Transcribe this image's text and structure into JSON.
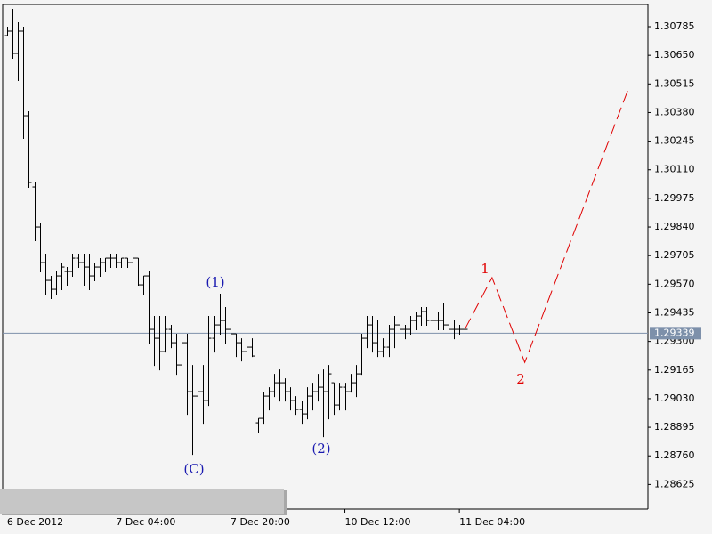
{
  "chart_data": {
    "type": "ohlc",
    "categories": [
      "6 Dec 2012",
      null,
      null,
      null,
      null,
      null,
      null,
      null,
      null,
      null,
      null,
      null,
      null,
      null,
      null,
      null,
      null,
      null,
      null,
      null,
      "7 Dec 04:00",
      null,
      null,
      null,
      null,
      null,
      null,
      null,
      null,
      null,
      null,
      null,
      null,
      null,
      null,
      null,
      null,
      null,
      null,
      null,
      null,
      "7 Dec 20:00",
      null,
      null,
      null,
      null,
      null,
      null,
      null,
      null,
      null,
      null,
      null,
      null,
      null,
      null,
      null,
      null,
      null,
      null,
      null,
      null,
      "10 Dec 12:00",
      null,
      null,
      null,
      null,
      null,
      null,
      null,
      null,
      null,
      null,
      null,
      null,
      null,
      null,
      null,
      null,
      null,
      null,
      null,
      null,
      "11 Dec 04:00",
      null
    ],
    "open": [
      1.30743,
      1.30764,
      1.30659,
      1.30764,
      1.30365,
      1.30029,
      1.2984,
      1.29672,
      1.29588,
      1.29546,
      1.29609,
      1.2963,
      1.2963,
      1.29693,
      1.29672,
      1.29651,
      1.29609,
      1.29651,
      1.29672,
      1.29693,
      1.29693,
      1.29672,
      1.29693,
      1.29672,
      1.29693,
      1.29567,
      1.29609,
      1.29357,
      1.29315,
      1.29252,
      1.29357,
      1.29294,
      1.29189,
      1.29294,
      1.29063,
      1.29042,
      1.29063,
      1.29021,
      1.29315,
      1.29378,
      1.29399,
      1.29357,
      1.29336,
      1.29294,
      1.29252,
      1.29273,
      1.28916,
      1.28937,
      1.29042,
      1.29063,
      1.29105,
      1.29105,
      1.29063,
      1.29021,
      1.28979,
      1.28958,
      1.29042,
      1.29063,
      1.29084,
      1.29063,
      1.29105,
      1.29,
      1.29084,
      1.29063,
      1.29105,
      1.29147,
      1.29315,
      1.29378,
      1.29294,
      1.29252,
      1.29273,
      1.29357,
      1.29378,
      1.29357,
      1.29357,
      1.29399,
      1.2942,
      1.29441,
      1.29399,
      1.29399,
      1.29399,
      1.29378,
      1.29357,
      1.29357,
      1.29357
    ],
    "high": [
      1.30785,
      1.30869,
      1.30806,
      1.30785,
      1.30386,
      1.3005,
      1.29861,
      1.29714,
      1.29609,
      1.2963,
      1.29672,
      1.29651,
      1.29714,
      1.29714,
      1.29714,
      1.29714,
      1.29672,
      1.29693,
      1.29693,
      1.29714,
      1.29714,
      1.29693,
      1.29693,
      1.29693,
      1.29693,
      1.29609,
      1.2963,
      1.2942,
      1.2942,
      1.2942,
      1.29378,
      1.29336,
      1.29315,
      1.29336,
      1.29189,
      1.29105,
      1.29189,
      1.2942,
      1.2942,
      1.29525,
      1.29462,
      1.2942,
      1.29336,
      1.29315,
      1.29315,
      1.29315,
      1.28937,
      1.29063,
      1.29084,
      1.29147,
      1.29168,
      1.29126,
      1.29084,
      1.29042,
      1.29021,
      1.29084,
      1.29105,
      1.29147,
      1.29168,
      1.29189,
      1.29105,
      1.29105,
      1.29105,
      1.29147,
      1.29189,
      1.29336,
      1.2942,
      1.2942,
      1.29399,
      1.29315,
      1.29378,
      1.2942,
      1.29399,
      1.29378,
      1.2942,
      1.29441,
      1.29462,
      1.29462,
      1.2942,
      1.29441,
      1.29483,
      1.2942,
      1.29399,
      1.29378,
      1.29378
    ],
    "low": [
      1.30743,
      1.30638,
      1.30533,
      1.3026,
      1.30029,
      1.29777,
      1.2963,
      1.29525,
      1.29504,
      1.29525,
      1.29546,
      1.29567,
      1.29609,
      1.29651,
      1.29567,
      1.29546,
      1.29588,
      1.29609,
      1.2963,
      1.29651,
      1.29651,
      1.29651,
      1.29651,
      1.29651,
      1.29567,
      1.29525,
      1.29294,
      1.29189,
      1.29168,
      1.29252,
      1.29273,
      1.29147,
      1.29147,
      1.28958,
      1.28769,
      1.28979,
      1.28916,
      1.29,
      1.29252,
      1.29336,
      1.29294,
      1.29294,
      1.29231,
      1.2921,
      1.29189,
      1.29231,
      1.28874,
      1.28916,
      1.28979,
      1.29042,
      1.29021,
      1.29021,
      1.28979,
      1.28958,
      1.28916,
      1.28937,
      1.28979,
      1.29021,
      1.28853,
      1.28937,
      1.28958,
      1.28979,
      1.28979,
      1.29063,
      1.29042,
      1.29147,
      1.29273,
      1.29252,
      1.29231,
      1.29231,
      1.29231,
      1.29273,
      1.29336,
      1.29315,
      1.29336,
      1.29357,
      1.29378,
      1.29378,
      1.29357,
      1.29357,
      1.29357,
      1.29336,
      1.29315,
      1.29336,
      1.29336
    ],
    "close": [
      1.30764,
      1.30659,
      1.30764,
      1.30365,
      1.3005,
      1.2984,
      1.29672,
      1.29588,
      1.29546,
      1.29609,
      1.29651,
      1.2963,
      1.29693,
      1.29672,
      1.29651,
      1.29609,
      1.29651,
      1.29672,
      1.29693,
      1.29693,
      1.29672,
      1.29693,
      1.29672,
      1.29693,
      1.29567,
      1.29609,
      1.29357,
      1.29315,
      1.29252,
      1.29357,
      1.29294,
      1.29189,
      1.29294,
      1.29063,
      1.29042,
      1.29063,
      1.29021,
      1.29315,
      1.29378,
      1.29399,
      1.29357,
      1.29336,
      1.29294,
      1.29252,
      1.29273,
      1.29231,
      1.28937,
      1.29042,
      1.29063,
      1.29105,
      1.29105,
      1.29063,
      1.29021,
      1.28979,
      1.28958,
      1.29042,
      1.29063,
      1.29084,
      1.29063,
      1.29147,
      1.29,
      1.29084,
      1.29063,
      1.29105,
      1.29147,
      1.29315,
      1.29378,
      1.29294,
      1.29252,
      1.29273,
      1.29357,
      1.29378,
      1.29357,
      1.29357,
      1.29399,
      1.2942,
      1.29441,
      1.29399,
      1.29399,
      1.29399,
      1.29378,
      1.29357,
      1.29357,
      1.29357,
      1.29357
    ],
    "color": "#000000",
    "xlim": [
      -0.8,
      117.6
    ],
    "ylim": [
      1.28509,
      1.3089
    ],
    "yticks": [
      1.30785,
      {
        "value": 1.3065,
        "label": "1.30650"
      },
      1.30515,
      {
        "value": 1.3038,
        "label": "1.30380"
      },
      1.30245,
      {
        "value": 1.3011,
        "label": "1.30110"
      },
      1.29975,
      {
        "value": 1.2984,
        "label": "1.29840"
      },
      1.29705,
      {
        "value": 1.2957,
        "label": "1.29570"
      },
      1.29435,
      {
        "value": 1.293,
        "label": "1.29300"
      },
      1.29165,
      {
        "value": 1.2903,
        "label": "1.29030"
      },
      1.28895,
      {
        "value": 1.2876,
        "label": "1.28760"
      },
      1.28625
    ],
    "last_price": 1.29339,
    "last_price_color": "#7d90aa",
    "forecast": {
      "x": [
        84,
        89,
        95,
        114
      ],
      "values": [
        1.29357,
        1.29601,
        1.29201,
        1.30491
      ],
      "color": "#e00000",
      "labels": [
        "1",
        "2"
      ]
    },
    "wave_labels": [
      "(C)",
      "(1)",
      "(2)"
    ],
    "wave_label_color": "#1a1ab0"
  }
}
